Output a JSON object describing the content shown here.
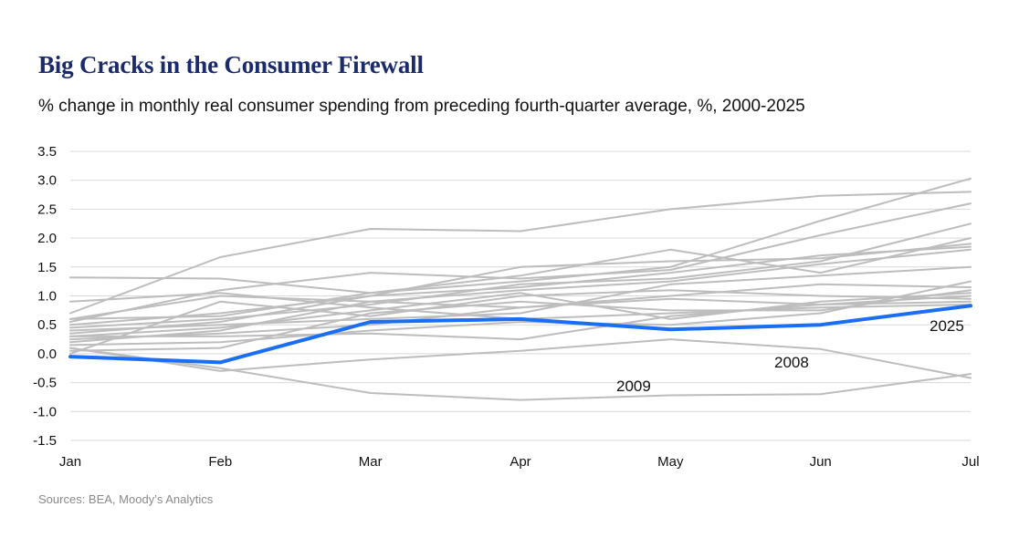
{
  "chart_data": {
    "type": "line",
    "title": "Big Cracks in the Consumer Firewall",
    "subtitle": "% change in monthly real consumer spending from preceding fourth-quarter average, %, 2000-2025",
    "source": "Sources: BEA, Moody’s Analytics",
    "categories": [
      "Jan",
      "Feb",
      "Mar",
      "Apr",
      "May",
      "Jun",
      "Jul"
    ],
    "ylim": [
      -1.5,
      3.5
    ],
    "yticks": [
      "3.5",
      "3.0",
      "2.5",
      "2.0",
      "1.5",
      "1.0",
      "0.5",
      "0.0",
      "-0.5",
      "-1.0",
      "-1.5"
    ],
    "grid": true,
    "highlight_color": "#1a6ef5",
    "background_color": "#bdbdbd",
    "series": [
      {
        "name": "2025",
        "values": [
          -0.05,
          -0.15,
          0.55,
          0.6,
          0.42,
          0.5,
          0.83
        ],
        "highlight": true,
        "label": "2025"
      },
      {
        "name": "2008",
        "values": [
          0.1,
          -0.3,
          -0.1,
          0.05,
          0.25,
          0.08,
          -0.42
        ],
        "label": "2008"
      },
      {
        "name": "2009",
        "values": [
          0.1,
          -0.25,
          -0.68,
          -0.8,
          -0.72,
          -0.7,
          -0.35
        ],
        "label": "2009"
      },
      {
        "name": "other-1",
        "values": [
          0.7,
          1.67,
          2.16,
          2.12,
          2.5,
          2.73,
          2.8
        ]
      },
      {
        "name": "other-2",
        "values": [
          1.32,
          1.3,
          1.05,
          1.35,
          1.8,
          1.4,
          2.0
        ]
      },
      {
        "name": "other-3",
        "values": [
          0.6,
          0.65,
          1.05,
          1.25,
          1.5,
          2.3,
          3.03
        ]
      },
      {
        "name": "other-4",
        "values": [
          0.55,
          1.1,
          1.4,
          1.3,
          1.45,
          2.05,
          2.6
        ]
      },
      {
        "name": "other-5",
        "values": [
          0.45,
          0.6,
          0.85,
          1.2,
          1.3,
          1.6,
          2.25
        ]
      },
      {
        "name": "other-6",
        "values": [
          0.5,
          0.7,
          1.0,
          1.5,
          1.6,
          1.65,
          1.9
        ]
      },
      {
        "name": "other-7",
        "values": [
          0.35,
          0.55,
          1.0,
          1.15,
          1.4,
          1.7,
          1.85
        ]
      },
      {
        "name": "other-8",
        "values": [
          0.2,
          0.4,
          0.9,
          1.1,
          1.25,
          1.55,
          1.8
        ]
      },
      {
        "name": "other-9",
        "values": [
          0.6,
          1.0,
          0.9,
          0.8,
          0.95,
          0.85,
          0.9
        ]
      },
      {
        "name": "other-10",
        "values": [
          0.4,
          0.5,
          0.6,
          0.7,
          1.2,
          1.35,
          1.5
        ]
      },
      {
        "name": "other-11",
        "values": [
          0.3,
          0.3,
          0.35,
          0.25,
          0.65,
          0.85,
          1.0
        ]
      },
      {
        "name": "other-12",
        "values": [
          0.15,
          0.2,
          0.4,
          0.55,
          0.5,
          0.7,
          1.25
        ]
      },
      {
        "name": "other-13",
        "values": [
          0.05,
          0.1,
          0.7,
          0.9,
          0.75,
          0.75,
          1.1
        ]
      },
      {
        "name": "other-14",
        "values": [
          0.0,
          0.9,
          0.65,
          1.0,
          1.1,
          1.0,
          0.95
        ]
      },
      {
        "name": "other-15",
        "values": [
          0.9,
          1.05,
          0.8,
          0.6,
          0.7,
          0.8,
          0.85
        ]
      },
      {
        "name": "other-16",
        "values": [
          0.25,
          0.35,
          0.5,
          0.8,
          1.0,
          1.2,
          1.15
        ]
      },
      {
        "name": "other-17",
        "values": [
          0.3,
          0.45,
          0.75,
          1.05,
          0.6,
          0.9,
          1.05
        ]
      }
    ]
  }
}
